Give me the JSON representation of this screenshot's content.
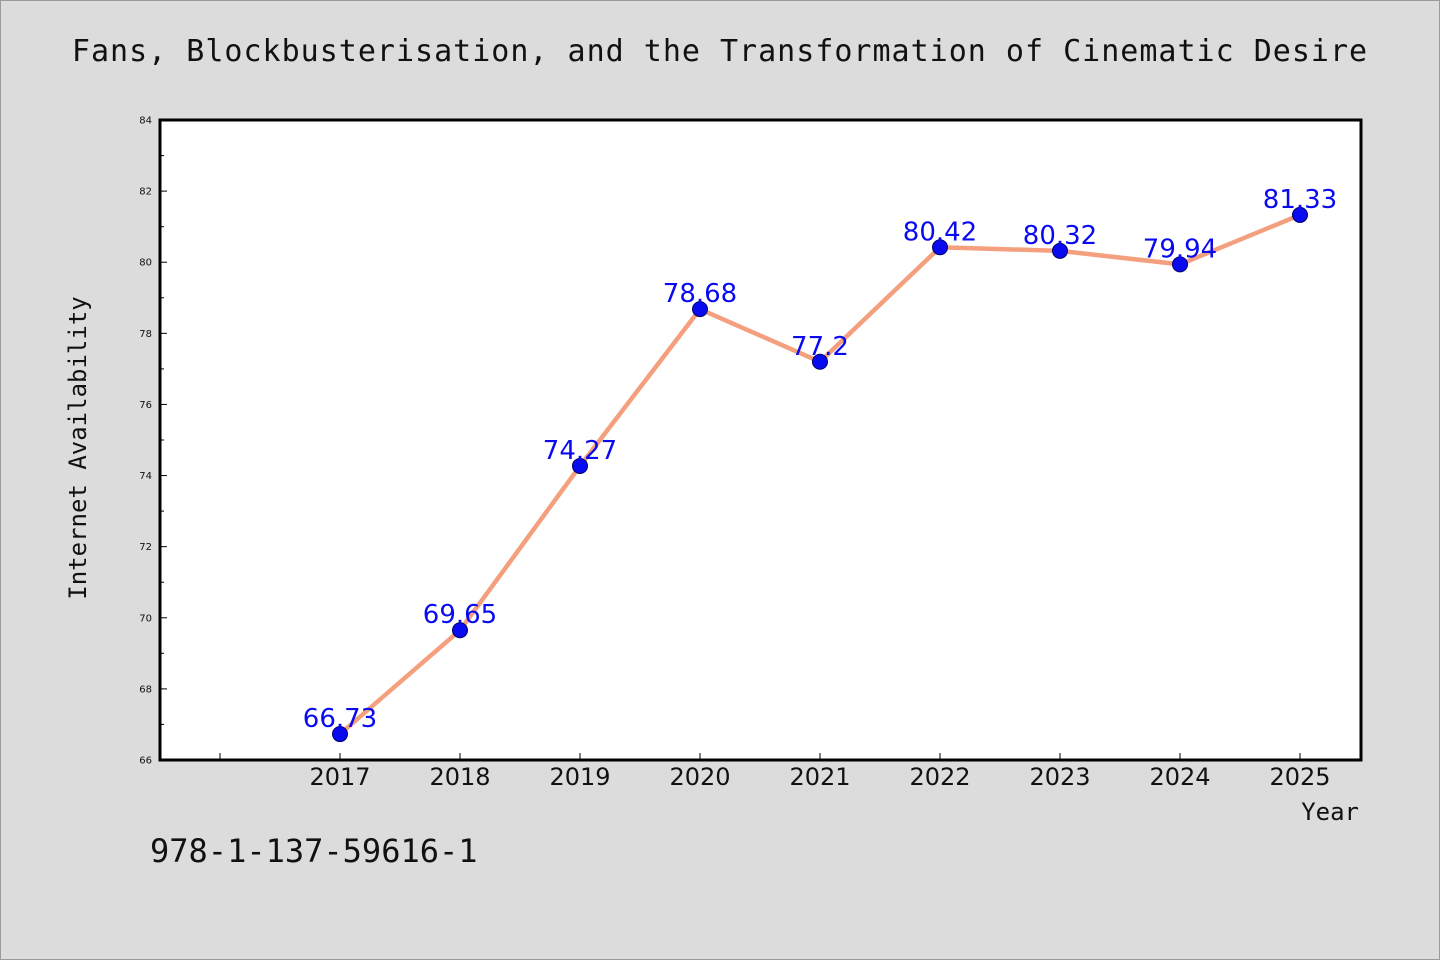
{
  "chart_data": {
    "type": "line",
    "title": "Fans, Blockbusterisation, and the Transformation of Cinematic Desire",
    "xlabel": "Year",
    "ylabel": "Internet Availability",
    "categories": [
      "2017",
      "2018",
      "2019",
      "2020",
      "2021",
      "2022",
      "2023",
      "2024",
      "2025"
    ],
    "values": [
      66.73,
      69.65,
      74.27,
      78.68,
      77.2,
      80.42,
      80.32,
      79.94,
      81.33
    ],
    "data_labels": [
      "66.73",
      "69.65",
      "74.27",
      "78.68",
      "77.2",
      "80.42",
      "80.32",
      "79.94",
      "81.33"
    ],
    "ylim": [
      66,
      84
    ],
    "y_ticks": [
      "66",
      "68",
      "70",
      "72",
      "74",
      "76",
      "78",
      "80",
      "82",
      "84"
    ],
    "grid": false,
    "line_color": "#f4a07e",
    "marker_color": "#0a0af0",
    "label_color": "#0a0af0"
  },
  "footer": {
    "isbn": "978-1-137-59616-1"
  }
}
